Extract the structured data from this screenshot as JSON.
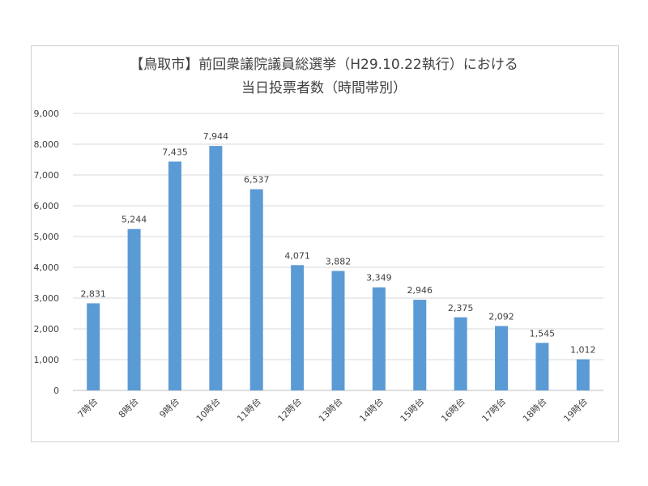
{
  "chart_data": {
    "type": "bar",
    "title_lines": [
      "【鳥取市】前回衆議院議員総選挙（H29.10.22執行）における",
      "当日投票者数（時間帯別）"
    ],
    "categories": [
      "7時台",
      "8時台",
      "9時台",
      "10時台",
      "11時台",
      "12時台",
      "13時台",
      "14時台",
      "15時台",
      "16時台",
      "17時台",
      "18時台",
      "19時台"
    ],
    "values": [
      2831,
      5244,
      7435,
      7944,
      6537,
      4071,
      3882,
      3349,
      2946,
      2375,
      2092,
      1545,
      1012
    ],
    "value_labels": [
      "2,831",
      "5,244",
      "7,435",
      "7,944",
      "6,537",
      "4,071",
      "3,882",
      "3,349",
      "2,946",
      "2,375",
      "2,092",
      "1,545",
      "1,012"
    ],
    "y_ticks": [
      "0",
      "1,000",
      "2,000",
      "3,000",
      "4,000",
      "5,000",
      "6,000",
      "7,000",
      "8,000",
      "9,000"
    ],
    "ylim": [
      0,
      9000
    ],
    "grid": true,
    "legend": "none",
    "bar_color": "#5b9bd5"
  }
}
